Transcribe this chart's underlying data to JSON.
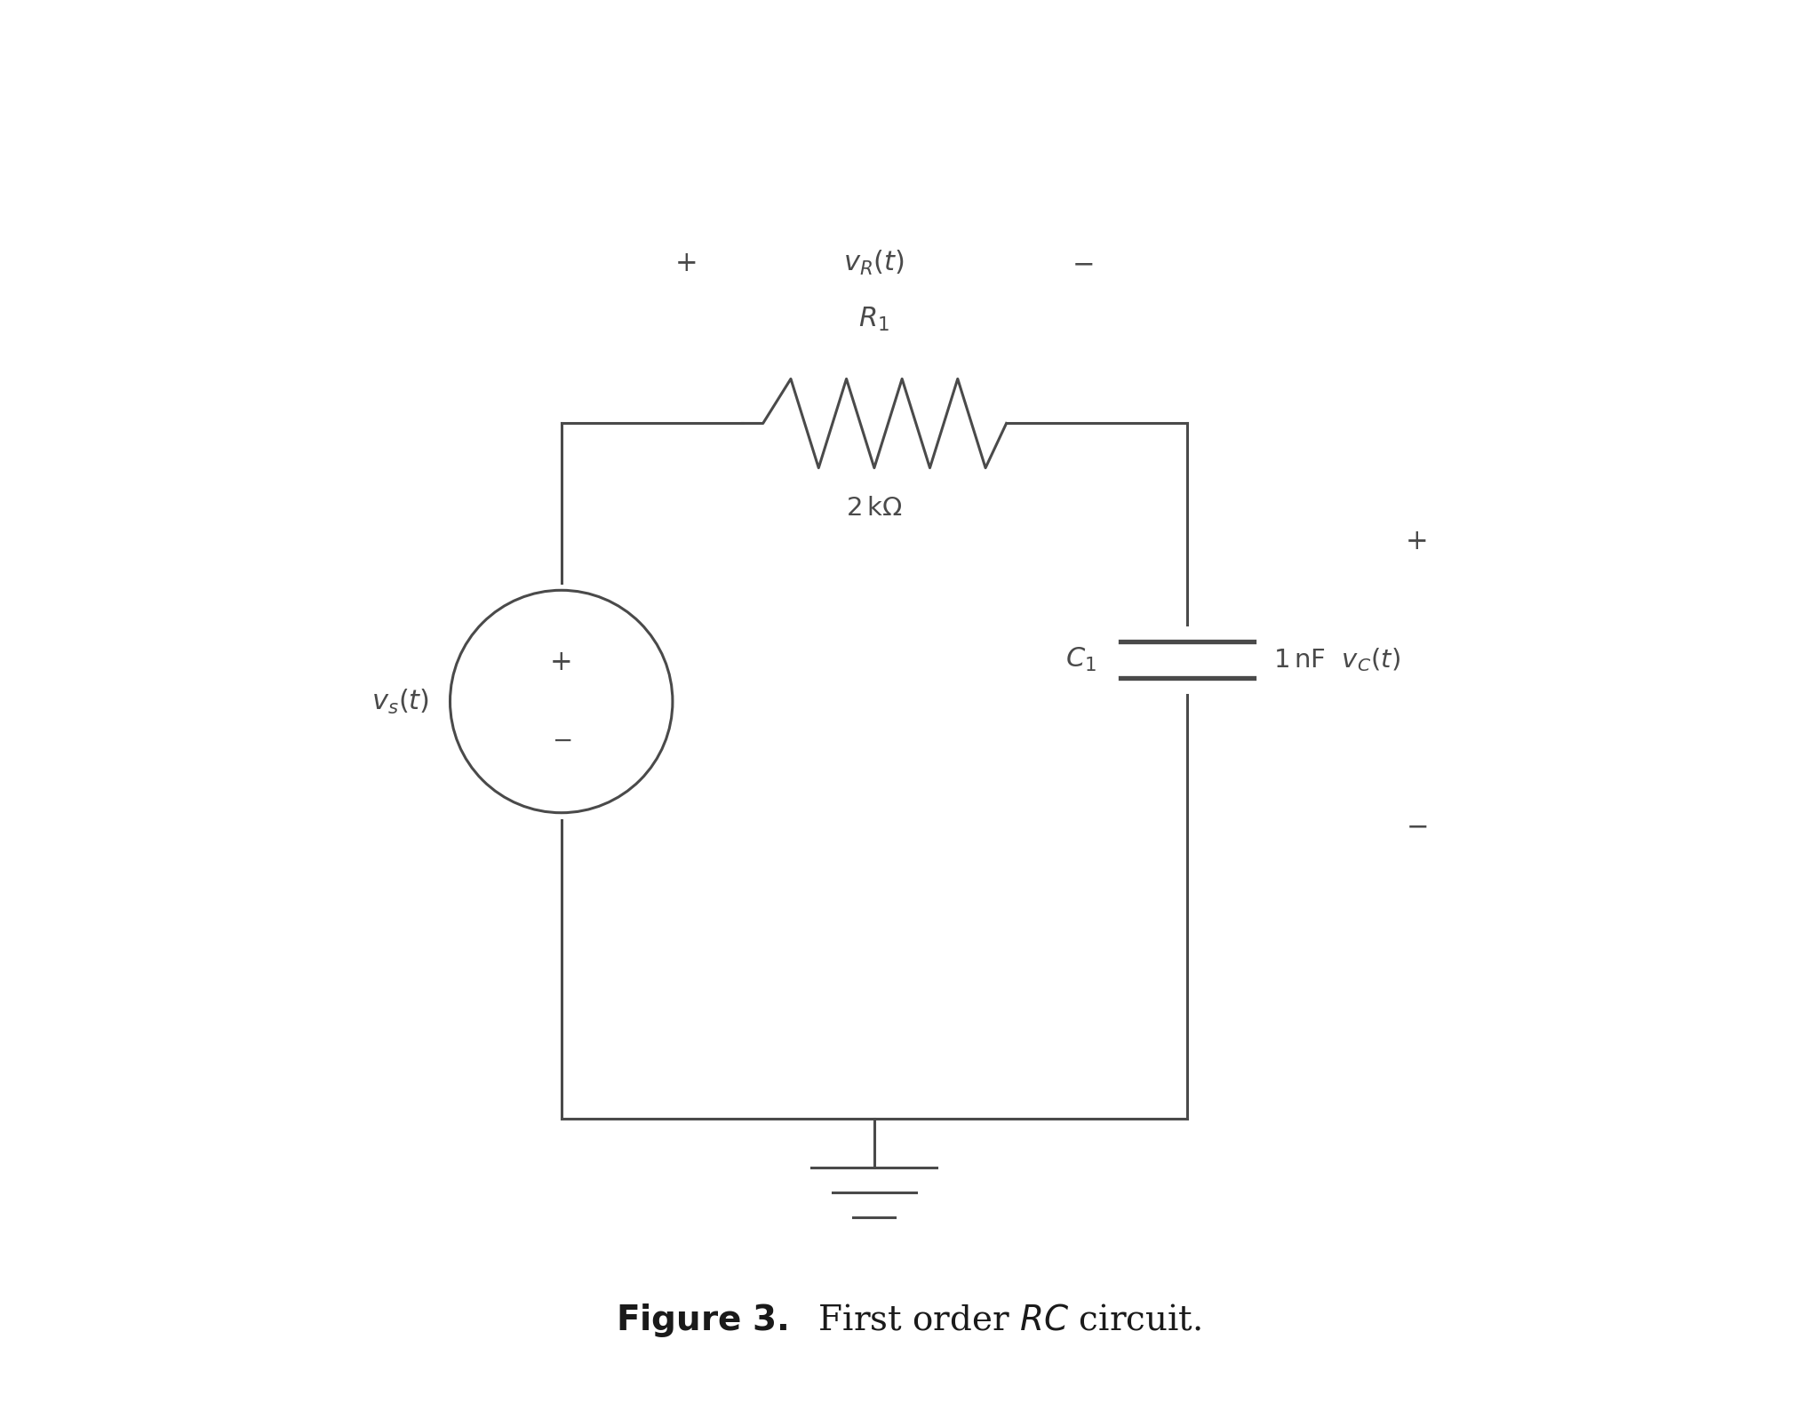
{
  "bg_color": "#ffffff",
  "line_color": "#4a4a4a",
  "text_color": "#2a2a2a",
  "figsize": [
    20.46,
    15.79
  ],
  "dpi": 100,
  "title_fontsize": 28,
  "annotation_fontsize": 22,
  "label_fontsize": 20
}
